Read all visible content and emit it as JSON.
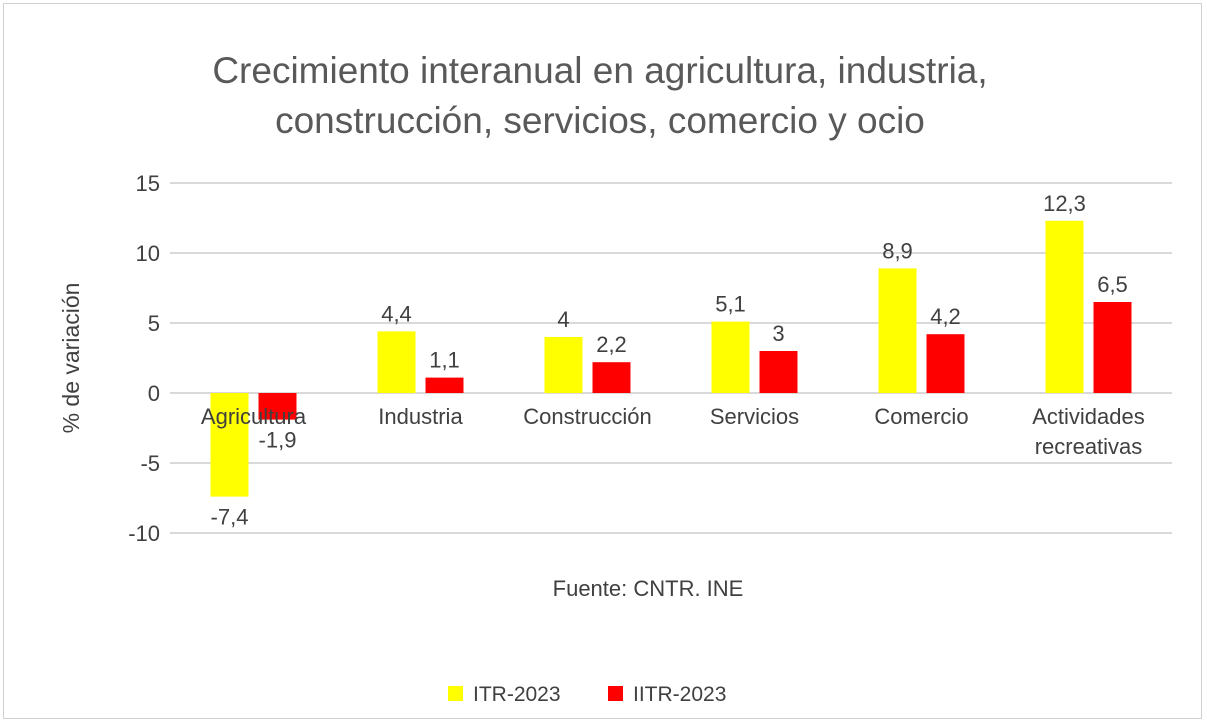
{
  "chart_data": {
    "type": "bar",
    "title": [
      "Crecimiento interanual en agricultura, industria,",
      "construcción, servicios, comercio y ocio"
    ],
    "xlabel": "Fuente: CNTR. INE",
    "ylabel": "% de variación",
    "ylim": [
      -10,
      15
    ],
    "yticks": [
      15,
      10,
      5,
      0,
      -5,
      -10
    ],
    "grid": true,
    "legend_position": "bottom",
    "categories": [
      [
        "Agricultura"
      ],
      [
        "Industria"
      ],
      [
        "Construcción"
      ],
      [
        "Servicios"
      ],
      [
        "Comercio"
      ],
      [
        "Actividades",
        "recreativas"
      ]
    ],
    "series": [
      {
        "name": "ITR-2023",
        "color": "#FFFF00",
        "values": [
          -7.4,
          4.4,
          4,
          5.1,
          8.9,
          12.3
        ],
        "labels": [
          "-7,4",
          "4,4",
          "4",
          "5,1",
          "8,9",
          "12,3"
        ]
      },
      {
        "name": "IITR-2023",
        "color": "#FF0000",
        "values": [
          -1.9,
          1.1,
          2.2,
          3,
          4.2,
          6.5
        ],
        "labels": [
          "-1,9",
          "1,1",
          "2,2",
          "3",
          "4,2",
          "6,5"
        ]
      }
    ]
  }
}
